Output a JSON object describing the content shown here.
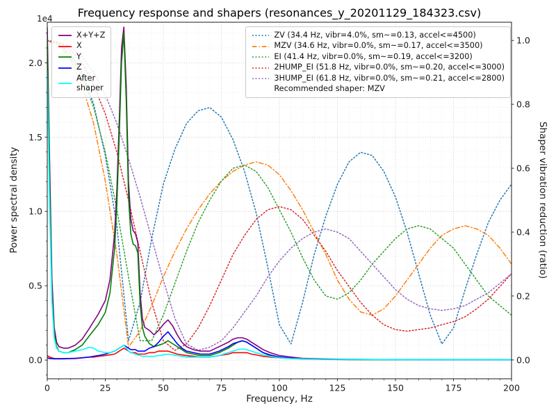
{
  "chart_data": {
    "type": "line",
    "title": "Frequency response and shapers (resonances_y_20201129_184323.csv)",
    "xlabel": "Frequency, Hz",
    "ylabel_left": "Power spectral density",
    "ylabel_left_offset": "1e4",
    "ylabel_right": "Shaper vibration reduction (ratio)",
    "xlim": [
      0,
      200
    ],
    "ylim_left": [
      -0.126,
      2.273
    ],
    "ylim_right": [
      -0.059,
      1.057
    ],
    "x_ticks": [
      "0",
      "25",
      "50",
      "75",
      "100",
      "125",
      "150",
      "175",
      "200"
    ],
    "y_ticks_left": [
      "0.0",
      "0.5",
      "1.0",
      "1.5",
      "2.0"
    ],
    "y_ticks_right": [
      "0.0",
      "0.2",
      "0.4",
      "0.6",
      "0.8",
      "1.0"
    ],
    "x_minor_step": 5,
    "y_minor_step_left": 0.1,
    "grid": true,
    "legend_position_psd": "upper left",
    "legend_position_shapers": "upper right",
    "recommended_note": "Recommended shaper: MZV",
    "psd_units": "1e4",
    "psd": {
      "x": [
        0,
        1,
        2,
        3,
        4,
        5,
        7,
        9,
        12,
        15,
        18,
        20,
        22,
        25,
        27,
        29,
        30,
        31,
        32,
        33,
        34,
        35,
        36,
        37,
        38,
        39,
        40,
        41,
        42,
        44,
        46,
        48,
        50,
        52,
        54,
        56,
        58,
        60,
        63,
        66,
        70,
        74,
        78,
        80,
        82,
        84,
        86,
        88,
        90,
        93,
        96,
        100,
        105,
        110,
        120,
        130,
        150,
        175,
        200
      ],
      "series": [
        {
          "name": "sum",
          "label": "X+Y+Z",
          "color": "#800080",
          "style": "solid",
          "y": [
            2.24,
            1.35,
            0.55,
            0.22,
            0.12,
            0.09,
            0.08,
            0.08,
            0.1,
            0.14,
            0.21,
            0.26,
            0.31,
            0.4,
            0.54,
            0.85,
            1.15,
            1.6,
            2.1,
            2.24,
            1.85,
            1.2,
            0.95,
            0.87,
            0.85,
            0.79,
            0.45,
            0.28,
            0.22,
            0.2,
            0.17,
            0.2,
            0.24,
            0.27,
            0.23,
            0.17,
            0.12,
            0.09,
            0.07,
            0.06,
            0.06,
            0.09,
            0.12,
            0.14,
            0.15,
            0.15,
            0.14,
            0.12,
            0.1,
            0.07,
            0.05,
            0.03,
            0.02,
            0.012,
            0.007,
            0.005,
            0.003,
            0.003,
            0.003
          ]
        },
        {
          "name": "x",
          "label": "X",
          "color": "#ff0000",
          "style": "solid",
          "y": [
            0.03,
            0.02,
            0.015,
            0.01,
            0.01,
            0.01,
            0.01,
            0.01,
            0.01,
            0.015,
            0.02,
            0.02,
            0.025,
            0.03,
            0.035,
            0.04,
            0.05,
            0.06,
            0.07,
            0.08,
            0.07,
            0.06,
            0.05,
            0.05,
            0.05,
            0.04,
            0.04,
            0.04,
            0.04,
            0.05,
            0.05,
            0.06,
            0.06,
            0.06,
            0.05,
            0.04,
            0.035,
            0.03,
            0.025,
            0.02,
            0.02,
            0.03,
            0.04,
            0.05,
            0.05,
            0.05,
            0.05,
            0.04,
            0.035,
            0.025,
            0.02,
            0.015,
            0.01,
            0.007,
            0.004,
            0.003,
            0.002,
            0.002,
            0.002
          ]
        },
        {
          "name": "y",
          "label": "Y",
          "color": "#008000",
          "style": "solid",
          "y": [
            2.18,
            1.2,
            0.45,
            0.18,
            0.09,
            0.06,
            0.05,
            0.05,
            0.07,
            0.1,
            0.16,
            0.2,
            0.24,
            0.32,
            0.45,
            0.75,
            1.05,
            1.5,
            2.0,
            2.2,
            1.75,
            1.1,
            0.85,
            0.78,
            0.77,
            0.72,
            0.38,
            0.22,
            0.16,
            0.11,
            0.09,
            0.1,
            0.11,
            0.13,
            0.11,
            0.09,
            0.07,
            0.05,
            0.04,
            0.03,
            0.03,
            0.05,
            0.08,
            0.1,
            0.12,
            0.13,
            0.12,
            0.1,
            0.08,
            0.05,
            0.03,
            0.02,
            0.012,
            0.008,
            0.005,
            0.003,
            0.002,
            0.002,
            0.002
          ]
        },
        {
          "name": "z",
          "label": "Z",
          "color": "#0000ff",
          "style": "solid",
          "y": [
            0.015,
            0.01,
            0.01,
            0.008,
            0.008,
            0.008,
            0.008,
            0.01,
            0.012,
            0.015,
            0.02,
            0.025,
            0.03,
            0.04,
            0.05,
            0.06,
            0.07,
            0.08,
            0.09,
            0.1,
            0.09,
            0.08,
            0.07,
            0.07,
            0.07,
            0.06,
            0.06,
            0.06,
            0.06,
            0.08,
            0.09,
            0.12,
            0.16,
            0.19,
            0.15,
            0.11,
            0.08,
            0.06,
            0.05,
            0.04,
            0.04,
            0.06,
            0.09,
            0.11,
            0.12,
            0.13,
            0.12,
            0.1,
            0.08,
            0.05,
            0.035,
            0.02,
            0.013,
            0.009,
            0.005,
            0.004,
            0.003,
            0.002,
            0.002
          ]
        },
        {
          "name": "after_shaper",
          "label": "After\nshaper",
          "color": "#00ffff",
          "style": "solid",
          "y": [
            1.95,
            1.05,
            0.4,
            0.15,
            0.08,
            0.06,
            0.05,
            0.05,
            0.06,
            0.07,
            0.085,
            0.08,
            0.06,
            0.05,
            0.05,
            0.06,
            0.07,
            0.08,
            0.09,
            0.1,
            0.08,
            0.06,
            0.05,
            0.045,
            0.04,
            0.035,
            0.03,
            0.025,
            0.025,
            0.025,
            0.025,
            0.03,
            0.035,
            0.04,
            0.035,
            0.03,
            0.025,
            0.02,
            0.02,
            0.02,
            0.02,
            0.03,
            0.05,
            0.06,
            0.07,
            0.075,
            0.07,
            0.06,
            0.05,
            0.035,
            0.025,
            0.015,
            0.01,
            0.008,
            0.005,
            0.004,
            0.003,
            0.003,
            0.003
          ]
        }
      ]
    },
    "shapers": {
      "x": [
        0,
        5,
        10,
        15,
        20,
        25,
        30,
        35,
        40,
        45,
        50,
        55,
        60,
        65,
        70,
        75,
        80,
        85,
        90,
        95,
        100,
        105,
        110,
        115,
        120,
        125,
        130,
        135,
        140,
        145,
        150,
        155,
        160,
        165,
        170,
        175,
        180,
        185,
        190,
        195,
        200
      ],
      "series": [
        {
          "name": "ZV",
          "label": "ZV (34.4 Hz, vibr=4.0%, sm~=0.13, accel<=4500)",
          "color": "#1f77b4",
          "style": "dotted",
          "y": [
            1.0,
            0.99,
            0.96,
            0.9,
            0.8,
            0.64,
            0.42,
            0.06,
            0.18,
            0.38,
            0.55,
            0.66,
            0.74,
            0.78,
            0.79,
            0.76,
            0.69,
            0.59,
            0.46,
            0.29,
            0.11,
            0.05,
            0.18,
            0.33,
            0.45,
            0.55,
            0.62,
            0.65,
            0.64,
            0.59,
            0.51,
            0.4,
            0.27,
            0.14,
            0.05,
            0.1,
            0.22,
            0.33,
            0.43,
            0.5,
            0.55
          ]
        },
        {
          "name": "MZV",
          "label": "MZV (34.6 Hz, vibr=0.0%, sm~=0.17, accel<=3500)",
          "color": "#ff7f0e",
          "style": "dashdot",
          "y": [
            1.0,
            0.985,
            0.94,
            0.86,
            0.74,
            0.56,
            0.33,
            0.04,
            0.09,
            0.17,
            0.26,
            0.34,
            0.41,
            0.47,
            0.52,
            0.56,
            0.59,
            0.61,
            0.62,
            0.61,
            0.58,
            0.53,
            0.47,
            0.4,
            0.33,
            0.25,
            0.19,
            0.15,
            0.14,
            0.16,
            0.2,
            0.25,
            0.3,
            0.35,
            0.39,
            0.41,
            0.42,
            0.41,
            0.39,
            0.35,
            0.3
          ]
        },
        {
          "name": "EI",
          "label": "EI (41.4 Hz, vibr=0.0%, sm~=0.19, accel<=3200)",
          "color": "#2ca02c",
          "style": "dotted",
          "y": [
            1.0,
            0.99,
            0.95,
            0.89,
            0.79,
            0.65,
            0.47,
            0.26,
            0.06,
            0.06,
            0.14,
            0.24,
            0.34,
            0.43,
            0.5,
            0.56,
            0.6,
            0.61,
            0.59,
            0.54,
            0.47,
            0.4,
            0.32,
            0.25,
            0.2,
            0.19,
            0.21,
            0.25,
            0.3,
            0.34,
            0.38,
            0.41,
            0.42,
            0.41,
            0.38,
            0.35,
            0.3,
            0.25,
            0.2,
            0.17,
            0.14
          ]
        },
        {
          "name": "2HUMP_EI",
          "label": "2HUMP_EI (51.8 Hz, vibr=0.0%, sm~=0.20, accel<=3000)",
          "color": "#d62728",
          "style": "dotted",
          "y": [
            1.0,
            0.995,
            0.97,
            0.93,
            0.86,
            0.77,
            0.65,
            0.5,
            0.34,
            0.18,
            0.06,
            0.03,
            0.05,
            0.1,
            0.17,
            0.25,
            0.33,
            0.39,
            0.44,
            0.47,
            0.48,
            0.47,
            0.44,
            0.39,
            0.34,
            0.28,
            0.23,
            0.18,
            0.14,
            0.11,
            0.095,
            0.09,
            0.095,
            0.1,
            0.11,
            0.12,
            0.135,
            0.16,
            0.19,
            0.23,
            0.27
          ]
        },
        {
          "name": "3HUMP_EI",
          "label": "3HUMP_EI (61.8 Hz, vibr=0.0%, sm~=0.21, accel<=2800)",
          "color": "#9467bd",
          "style": "dotted",
          "y": [
            1.0,
            0.995,
            0.98,
            0.95,
            0.9,
            0.83,
            0.74,
            0.63,
            0.51,
            0.38,
            0.25,
            0.13,
            0.05,
            0.03,
            0.04,
            0.06,
            0.1,
            0.15,
            0.2,
            0.26,
            0.31,
            0.35,
            0.38,
            0.4,
            0.41,
            0.4,
            0.38,
            0.34,
            0.3,
            0.26,
            0.22,
            0.19,
            0.17,
            0.16,
            0.155,
            0.16,
            0.17,
            0.19,
            0.21,
            0.24,
            0.27
          ]
        }
      ]
    }
  }
}
